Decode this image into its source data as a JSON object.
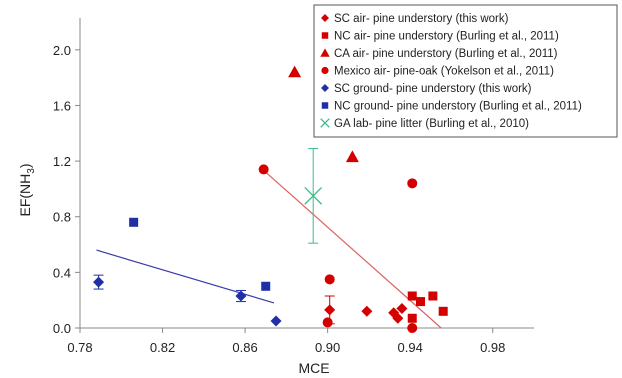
{
  "chart_data": {
    "type": "scatter",
    "title": "",
    "xlabel": "MCE",
    "ylabel_main": "EF(NH",
    "ylabel_sub": "3",
    "ylabel_close": ")",
    "xlim": [
      0.78,
      1.0
    ],
    "ylim": [
      0.0,
      2.2
    ],
    "x_ticks": [
      0.78,
      0.82,
      0.86,
      0.9,
      0.94,
      0.98
    ],
    "x_tick_labels": [
      "0.78",
      "0.82",
      "0.86",
      "0.90",
      "0.94",
      "0.98"
    ],
    "y_ticks": [
      0.0,
      0.4,
      0.8,
      1.2,
      1.6,
      2.0
    ],
    "y_tick_labels": [
      "0.0",
      "0.4",
      "0.8",
      "1.2",
      "1.6",
      "2.0"
    ],
    "grid": false,
    "legend_position": "top-right",
    "series": [
      {
        "name": "SC air- pine understory (this work)",
        "marker": "diamond",
        "color": "#d40000",
        "points": [
          {
            "x": 0.901,
            "y": 0.13,
            "err": 0.1
          },
          {
            "x": 0.919,
            "y": 0.12
          },
          {
            "x": 0.932,
            "y": 0.11
          },
          {
            "x": 0.934,
            "y": 0.07
          },
          {
            "x": 0.936,
            "y": 0.14
          }
        ]
      },
      {
        "name": "NC air- pine understory (Burling et al., 2011)",
        "marker": "square",
        "color": "#d40000",
        "points": [
          {
            "x": 0.941,
            "y": 0.23
          },
          {
            "x": 0.945,
            "y": 0.19
          },
          {
            "x": 0.951,
            "y": 0.23
          },
          {
            "x": 0.956,
            "y": 0.12
          },
          {
            "x": 0.941,
            "y": 0.07
          }
        ]
      },
      {
        "name": "CA air- pine understory (Burling et al., 2011)",
        "marker": "triangle",
        "color": "#d40000",
        "points": [
          {
            "x": 0.884,
            "y": 1.84
          },
          {
            "x": 0.912,
            "y": 1.23
          }
        ]
      },
      {
        "name": "Mexico air- pine-oak (Yokelson et al., 2011)",
        "marker": "circle",
        "color": "#d40000",
        "points": [
          {
            "x": 0.869,
            "y": 1.14
          },
          {
            "x": 0.941,
            "y": 1.04
          },
          {
            "x": 0.901,
            "y": 0.35
          },
          {
            "x": 0.9,
            "y": 0.04
          },
          {
            "x": 0.941,
            "y": 0.0
          }
        ]
      },
      {
        "name": "SC ground- pine understory (this work)",
        "marker": "diamond",
        "color": "#1f2fa8",
        "points": [
          {
            "x": 0.789,
            "y": 0.33,
            "err": 0.05
          },
          {
            "x": 0.858,
            "y": 0.23,
            "err": 0.04
          },
          {
            "x": 0.875,
            "y": 0.05
          }
        ]
      },
      {
        "name": "NC ground- pine understory (Burling et al., 2011)",
        "marker": "square",
        "color": "#1f2fa8",
        "points": [
          {
            "x": 0.806,
            "y": 0.76
          },
          {
            "x": 0.87,
            "y": 0.3
          }
        ]
      },
      {
        "name": "GA lab- pine litter (Burling et al., 2010)",
        "marker": "x",
        "color": "#3dbb8a",
        "points": [
          {
            "x": 0.893,
            "y": 0.95,
            "err": 0.34
          }
        ]
      }
    ],
    "trendlines": [
      {
        "color": "#e06060",
        "x": [
          0.87,
          0.955
        ],
        "y": [
          1.12,
          0.0
        ]
      },
      {
        "color": "#3a3ab0",
        "x": [
          0.788,
          0.874
        ],
        "y": [
          0.56,
          0.18
        ]
      }
    ]
  }
}
